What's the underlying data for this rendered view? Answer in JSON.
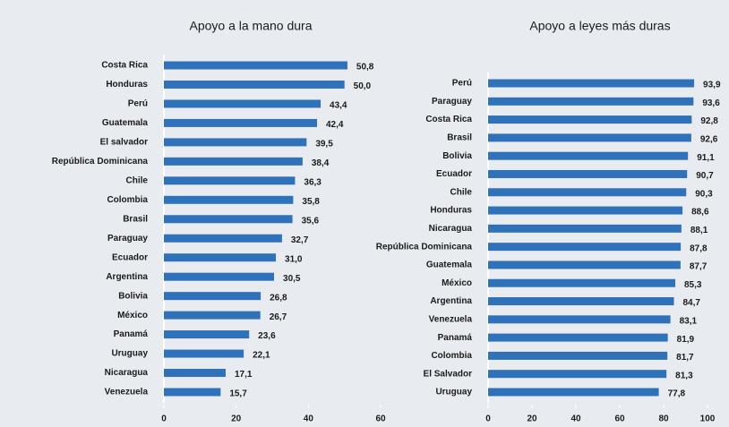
{
  "chart_data": [
    {
      "type": "bar",
      "orientation": "horizontal",
      "title": "Apoyo a la mano dura",
      "color": "#2f72b9",
      "categories": [
        "Costa Rica",
        "Honduras",
        "Perú",
        "Guatemala",
        "El salvador",
        "República Dominicana",
        "Chile",
        "Colombia",
        "Brasil",
        "Paraguay",
        "Ecuador",
        "Argentina",
        "Bolivia",
        "México",
        "Panamá",
        "Uruguay",
        "Nicaragua",
        "Venezuela"
      ],
      "values": [
        50.8,
        50.0,
        43.4,
        42.4,
        39.5,
        38.4,
        36.3,
        35.8,
        35.6,
        32.7,
        31.0,
        30.5,
        26.8,
        26.7,
        23.6,
        22.1,
        17.1,
        15.7
      ],
      "value_labels": [
        "50,8",
        "50,0",
        "43,4",
        "42,4",
        "39,5",
        "38,4",
        "36,3",
        "35,8",
        "35,6",
        "32,7",
        "31,0",
        "30,5",
        "26,8",
        "26,7",
        "23,6",
        "22,1",
        "17,1",
        "15,7"
      ],
      "xlim": [
        0,
        60
      ],
      "xticks": [
        0,
        20,
        40,
        60
      ]
    },
    {
      "type": "bar",
      "orientation": "horizontal",
      "title": "Apoyo a leyes más duras",
      "color": "#2f72b9",
      "categories": [
        "Perú",
        "Paraguay",
        "Costa Rica",
        "Brasil",
        "Bolivia",
        "Ecuador",
        "Chile",
        "Honduras",
        "Nicaragua",
        "República Dominicana",
        "Guatemala",
        "México",
        "Argentina",
        "Venezuela",
        "Panamá",
        "Colombia",
        "El Salvador",
        "Uruguay"
      ],
      "values": [
        93.9,
        93.6,
        92.8,
        92.6,
        91.1,
        90.7,
        90.3,
        88.6,
        88.1,
        87.8,
        87.7,
        85.3,
        84.7,
        83.1,
        81.9,
        81.7,
        81.3,
        77.8
      ],
      "value_labels": [
        "93,9",
        "93,6",
        "92,8",
        "92,6",
        "91,1",
        "90,7",
        "90,3",
        "88,6",
        "88,1",
        "87,8",
        "87,7",
        "85,3",
        "84,7",
        "83,1",
        "81,9",
        "81,7",
        "81,3",
        "77,8"
      ],
      "xlim": [
        0,
        100
      ],
      "xticks": [
        0,
        20,
        40,
        60,
        80,
        100
      ]
    }
  ]
}
